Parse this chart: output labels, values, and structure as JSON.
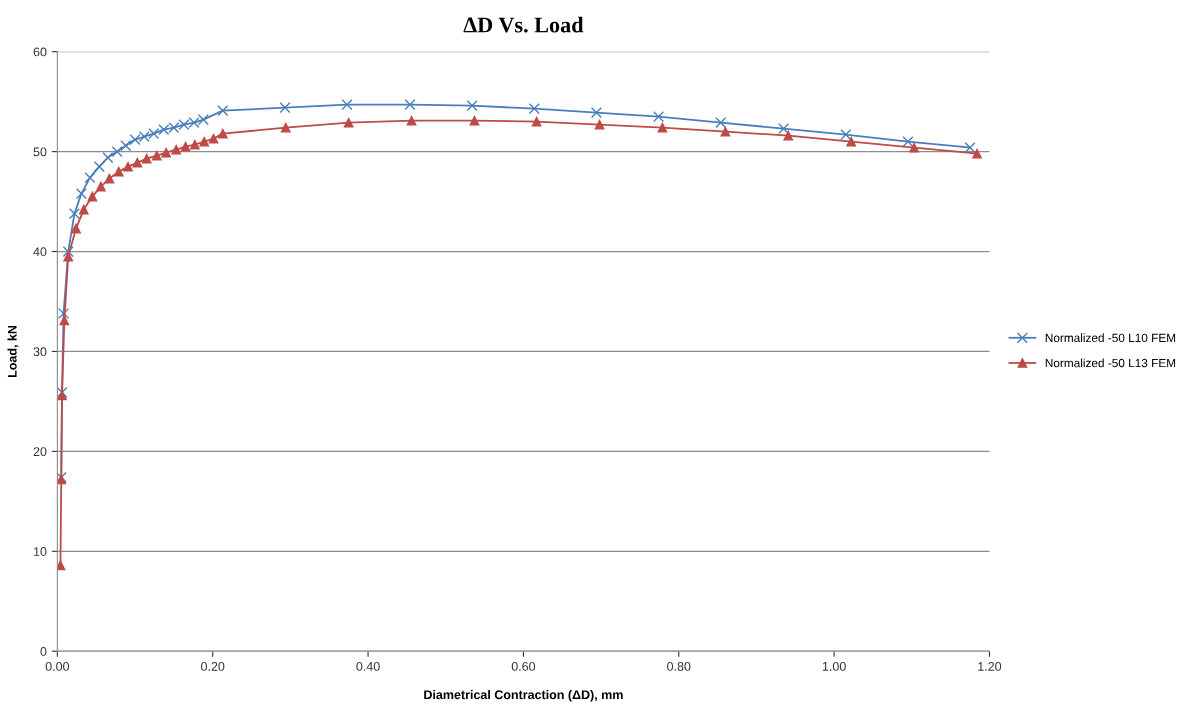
{
  "chart_data": {
    "type": "line",
    "title": "ΔD Vs. Load",
    "xlabel": "Diametrical Contraction (ΔD), mm",
    "ylabel": "Load, kN",
    "xlim": [
      0,
      1.2
    ],
    "ylim": [
      0,
      60
    ],
    "xticks": [
      {
        "value": 0,
        "label": "0.00"
      },
      {
        "value": 0.2,
        "label": "0.20"
      },
      {
        "value": 0.4,
        "label": "0.40"
      },
      {
        "value": 0.6,
        "label": "0.60"
      },
      {
        "value": 0.8,
        "label": "0.80"
      },
      {
        "value": 1.0,
        "label": "1.00"
      },
      {
        "value": 1.2,
        "label": "1.20"
      }
    ],
    "yticks": [
      0,
      10,
      20,
      30,
      40,
      50,
      60
    ],
    "grid": "y",
    "legend": "right",
    "series": [
      {
        "name": "Normalized -50 L10 FEM",
        "color": "#4a7ebb",
        "marker": "cross",
        "x": [
          0.005,
          0.006,
          0.008,
          0.014,
          0.022,
          0.031,
          0.042,
          0.054,
          0.065,
          0.077,
          0.088,
          0.1,
          0.112,
          0.124,
          0.137,
          0.15,
          0.163,
          0.176,
          0.188,
          0.213,
          0.293,
          0.373,
          0.454,
          0.534,
          0.614,
          0.694,
          0.774,
          0.854,
          0.935,
          1.015,
          1.095,
          1.175
        ],
        "values": [
          17.4,
          25.9,
          33.8,
          40.0,
          43.8,
          45.8,
          47.4,
          48.5,
          49.4,
          50.0,
          50.6,
          51.2,
          51.5,
          51.8,
          52.2,
          52.4,
          52.7,
          52.9,
          53.2,
          54.1,
          54.4,
          54.7,
          54.7,
          54.6,
          54.3,
          53.9,
          53.5,
          52.9,
          52.3,
          51.7,
          51.0,
          50.4
        ]
      },
      {
        "name": "Normalized -50 L13 FEM",
        "color": "#be4b48",
        "marker": "triangle",
        "x": [
          0.004,
          0.005,
          0.006,
          0.009,
          0.014,
          0.024,
          0.034,
          0.045,
          0.056,
          0.067,
          0.079,
          0.091,
          0.103,
          0.115,
          0.128,
          0.14,
          0.153,
          0.165,
          0.177,
          0.189,
          0.201,
          0.213,
          0.294,
          0.375,
          0.456,
          0.537,
          0.617,
          0.698,
          0.779,
          0.86,
          0.941,
          1.022,
          1.103,
          1.184
        ],
        "values": [
          8.6,
          17.2,
          25.6,
          33.1,
          39.5,
          42.3,
          44.2,
          45.5,
          46.5,
          47.3,
          48.0,
          48.5,
          48.9,
          49.3,
          49.6,
          49.9,
          50.2,
          50.5,
          50.7,
          51.0,
          51.3,
          51.8,
          52.4,
          52.9,
          53.1,
          53.1,
          53.0,
          52.7,
          52.4,
          52.0,
          51.6,
          51.0,
          50.4,
          49.8
        ]
      }
    ]
  }
}
